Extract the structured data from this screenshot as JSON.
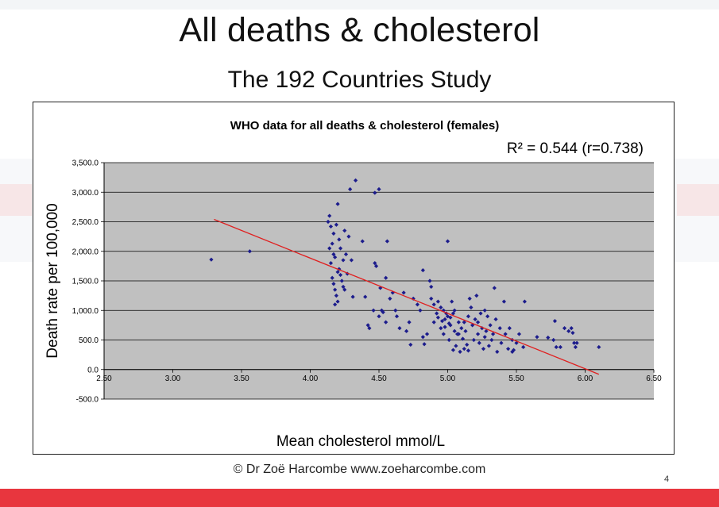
{
  "slide": {
    "title": "All deaths & cholesterol",
    "subtitle": "The 192 Countries Study",
    "credit": "© Dr Zoë Harcombe www.zoeharcombe.com",
    "page_number": "4"
  },
  "chart_data": {
    "type": "scatter",
    "title": "WHO data for all deaths & cholesterol (females)",
    "annotation": "R² = 0.544 (r=0.738)",
    "xlabel": "Mean cholesterol mmol/L",
    "ylabel": "Death rate per 100,000",
    "xlim": [
      2.5,
      6.5
    ],
    "ylim": [
      -500,
      3500
    ],
    "xticks": [
      "2.50",
      "3.00",
      "3.50",
      "4.00",
      "4.50",
      "5.00",
      "5.50",
      "6.00",
      "6.50"
    ],
    "yticks": [
      "-500.0",
      "0.0",
      "500.0",
      "1,000.0",
      "1,500.0",
      "2,000.0",
      "2,500.0",
      "3,000.0",
      "3,500.0"
    ],
    "grid": "horizontal",
    "colors": {
      "plot_area": "#c0c0c0",
      "marker": "#1c1c8c",
      "trendline": "#e02020",
      "gridline": "#000000"
    },
    "trendline": {
      "x": [
        3.3,
        6.1
      ],
      "y": [
        2540,
        -80
      ]
    },
    "points": [
      [
        3.28,
        1860
      ],
      [
        3.56,
        2000
      ],
      [
        4.13,
        2500
      ],
      [
        4.14,
        2600
      ],
      [
        4.15,
        2420
      ],
      [
        4.16,
        2130
      ],
      [
        4.14,
        2050
      ],
      [
        4.17,
        1950
      ],
      [
        4.18,
        1900
      ],
      [
        4.15,
        1800
      ],
      [
        4.16,
        1550
      ],
      [
        4.17,
        1450
      ],
      [
        4.18,
        1350
      ],
      [
        4.19,
        1250
      ],
      [
        4.2,
        1150
      ],
      [
        4.18,
        1100
      ],
      [
        4.2,
        1650
      ],
      [
        4.21,
        1700
      ],
      [
        4.22,
        1600
      ],
      [
        4.23,
        1500
      ],
      [
        4.24,
        1400
      ],
      [
        4.25,
        1350
      ],
      [
        4.21,
        2200
      ],
      [
        4.19,
        2450
      ],
      [
        4.2,
        2800
      ],
      [
        4.17,
        2300
      ],
      [
        4.22,
        2050
      ],
      [
        4.24,
        1850
      ],
      [
        4.26,
        1950
      ],
      [
        4.27,
        1620
      ],
      [
        4.28,
        2250
      ],
      [
        4.3,
        1850
      ],
      [
        4.31,
        1230
      ],
      [
        4.33,
        3200
      ],
      [
        4.29,
        3050
      ],
      [
        4.38,
        2170
      ],
      [
        4.4,
        1230
      ],
      [
        4.25,
        2350
      ],
      [
        4.42,
        750
      ],
      [
        4.43,
        700
      ],
      [
        4.46,
        1000
      ],
      [
        4.47,
        1800
      ],
      [
        4.48,
        1750
      ],
      [
        4.47,
        2990
      ],
      [
        4.5,
        3050
      ],
      [
        4.51,
        1380
      ],
      [
        4.52,
        1000
      ],
      [
        4.5,
        900
      ],
      [
        4.53,
        970
      ],
      [
        4.55,
        800
      ],
      [
        4.56,
        2170
      ],
      [
        4.55,
        1550
      ],
      [
        4.58,
        1200
      ],
      [
        4.6,
        1300
      ],
      [
        4.62,
        1000
      ],
      [
        4.63,
        900
      ],
      [
        4.65,
        700
      ],
      [
        4.68,
        1300
      ],
      [
        4.7,
        650
      ],
      [
        4.72,
        800
      ],
      [
        4.73,
        420
      ],
      [
        4.75,
        1200
      ],
      [
        4.78,
        1100
      ],
      [
        4.8,
        1000
      ],
      [
        4.82,
        550
      ],
      [
        4.83,
        430
      ],
      [
        4.85,
        600
      ],
      [
        4.87,
        1500
      ],
      [
        4.88,
        1400
      ],
      [
        4.82,
        1680
      ],
      [
        4.9,
        800
      ],
      [
        4.92,
        950
      ],
      [
        4.93,
        1150
      ],
      [
        4.95,
        700
      ],
      [
        4.97,
        600
      ],
      [
        4.98,
        850
      ],
      [
        5.0,
        2170
      ],
      [
        5.01,
        500
      ],
      [
        5.02,
        750
      ],
      [
        5.03,
        1150
      ],
      [
        5.04,
        950
      ],
      [
        5.05,
        650
      ],
      [
        5.06,
        400
      ],
      [
        5.07,
        600
      ],
      [
        5.08,
        800
      ],
      [
        5.09,
        300
      ],
      [
        5.1,
        700
      ],
      [
        5.11,
        520
      ],
      [
        5.12,
        350
      ],
      [
        5.13,
        650
      ],
      [
        5.14,
        420
      ],
      [
        5.15,
        900
      ],
      [
        5.16,
        1200
      ],
      [
        5.17,
        1050
      ],
      [
        5.18,
        750
      ],
      [
        5.19,
        500
      ],
      [
        5.2,
        850
      ],
      [
        5.21,
        1250
      ],
      [
        5.22,
        600
      ],
      [
        5.23,
        450
      ],
      [
        5.24,
        950
      ],
      [
        5.25,
        700
      ],
      [
        5.26,
        350
      ],
      [
        5.27,
        550
      ],
      [
        5.28,
        650
      ],
      [
        5.29,
        900
      ],
      [
        5.3,
        400
      ],
      [
        5.31,
        750
      ],
      [
        5.32,
        500
      ],
      [
        5.34,
        1380
      ],
      [
        5.35,
        850
      ],
      [
        5.36,
        300
      ],
      [
        5.38,
        700
      ],
      [
        5.39,
        450
      ],
      [
        5.41,
        1150
      ],
      [
        5.42,
        600
      ],
      [
        5.44,
        350
      ],
      [
        5.45,
        700
      ],
      [
        5.47,
        500
      ],
      [
        5.48,
        330
      ],
      [
        5.5,
        450
      ],
      [
        5.52,
        600
      ],
      [
        5.55,
        380
      ],
      [
        5.56,
        1150
      ],
      [
        4.95,
        1050
      ],
      [
        4.97,
        1000
      ],
      [
        4.99,
        950
      ],
      [
        5.0,
        900
      ],
      [
        5.02,
        880
      ],
      [
        4.96,
        820
      ],
      [
        5.01,
        780
      ],
      [
        4.98,
        720
      ],
      [
        5.05,
        1000
      ],
      [
        4.9,
        1100
      ],
      [
        4.88,
        1200
      ],
      [
        4.93,
        880
      ],
      [
        5.12,
        800
      ],
      [
        5.08,
        600
      ],
      [
        5.04,
        330
      ],
      [
        5.22,
        800
      ],
      [
        5.27,
        1000
      ],
      [
        5.15,
        320
      ],
      [
        5.33,
        600
      ],
      [
        5.47,
        300
      ],
      [
        5.65,
        550
      ],
      [
        5.73,
        540
      ],
      [
        5.77,
        500
      ],
      [
        5.78,
        820
      ],
      [
        5.82,
        380
      ],
      [
        5.85,
        700
      ],
      [
        5.88,
        650
      ],
      [
        5.9,
        700
      ],
      [
        5.91,
        620
      ],
      [
        5.92,
        450
      ],
      [
        5.93,
        380
      ],
      [
        5.94,
        450
      ],
      [
        6.1,
        380
      ],
      [
        5.79,
        380
      ]
    ]
  }
}
